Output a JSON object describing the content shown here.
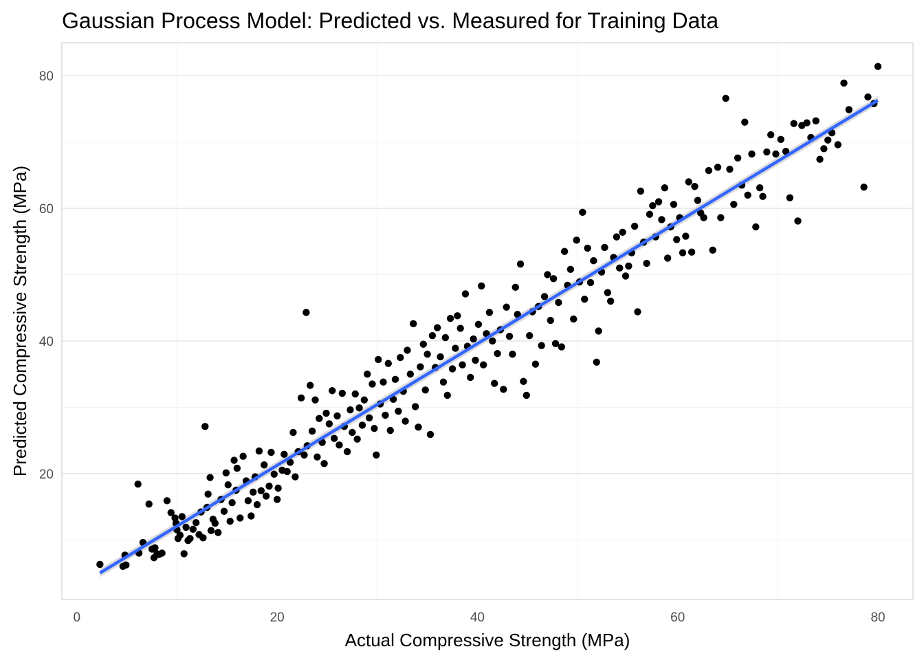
{
  "chart_data": {
    "type": "scatter",
    "title": "Gaussian Process Model: Predicted vs. Measured for Training Data",
    "xlabel": "Actual Compressive Strength (MPa)",
    "ylabel": "Predicted Compressive Strength (MPa)",
    "xlim": [
      -1.5,
      83.5
    ],
    "ylim": [
      1.0,
      85.0
    ],
    "x_ticks": [
      0,
      20,
      40,
      60,
      80
    ],
    "y_ticks": [
      20,
      40,
      60,
      80
    ],
    "grid": true,
    "point_color": "#000000",
    "fit_line": {
      "x": [
        2.3,
        80.0
      ],
      "y": [
        5.0,
        76.3
      ],
      "color": "#3366ff",
      "band_color": "#cccccc"
    },
    "points": [
      [
        2.3,
        6.3
      ],
      [
        4.6,
        6.0
      ],
      [
        4.8,
        7.7
      ],
      [
        4.9,
        6.2
      ],
      [
        6.1,
        18.4
      ],
      [
        6.2,
        8.0
      ],
      [
        6.6,
        9.6
      ],
      [
        7.2,
        15.4
      ],
      [
        7.5,
        8.6
      ],
      [
        7.7,
        7.3
      ],
      [
        7.8,
        8.8
      ],
      [
        8.0,
        7.9
      ],
      [
        8.2,
        7.8
      ],
      [
        8.5,
        8.0
      ],
      [
        9.0,
        15.9
      ],
      [
        9.4,
        14.1
      ],
      [
        9.8,
        13.3
      ],
      [
        9.9,
        12.5
      ],
      [
        10.0,
        11.5
      ],
      [
        10.1,
        10.2
      ],
      [
        10.3,
        10.7
      ],
      [
        10.5,
        13.5
      ],
      [
        10.7,
        7.9
      ],
      [
        10.9,
        11.9
      ],
      [
        11.1,
        9.9
      ],
      [
        11.3,
        10.2
      ],
      [
        11.6,
        11.6
      ],
      [
        11.9,
        12.6
      ],
      [
        12.2,
        10.8
      ],
      [
        12.4,
        14.2
      ],
      [
        12.6,
        10.3
      ],
      [
        12.8,
        27.1
      ],
      [
        13.0,
        14.9
      ],
      [
        13.1,
        16.9
      ],
      [
        13.3,
        19.4
      ],
      [
        13.4,
        11.4
      ],
      [
        13.6,
        13.1
      ],
      [
        13.8,
        12.5
      ],
      [
        14.1,
        11.1
      ],
      [
        14.4,
        16.1
      ],
      [
        14.7,
        14.3
      ],
      [
        14.9,
        20.1
      ],
      [
        15.1,
        18.3
      ],
      [
        15.3,
        12.8
      ],
      [
        15.5,
        15.6
      ],
      [
        15.7,
        22.0
      ],
      [
        15.9,
        17.5
      ],
      [
        16.0,
        20.8
      ],
      [
        16.3,
        13.3
      ],
      [
        16.6,
        22.6
      ],
      [
        16.9,
        18.9
      ],
      [
        17.1,
        15.9
      ],
      [
        17.4,
        13.6
      ],
      [
        17.6,
        17.2
      ],
      [
        17.8,
        19.5
      ],
      [
        18.0,
        15.3
      ],
      [
        18.2,
        23.4
      ],
      [
        18.4,
        17.4
      ],
      [
        18.7,
        21.3
      ],
      [
        18.9,
        16.6
      ],
      [
        19.2,
        18.1
      ],
      [
        19.4,
        23.2
      ],
      [
        19.7,
        19.9
      ],
      [
        20.0,
        16.1
      ],
      [
        20.1,
        17.8
      ],
      [
        20.5,
        20.5
      ],
      [
        20.7,
        22.9
      ],
      [
        21.0,
        20.3
      ],
      [
        21.3,
        21.7
      ],
      [
        21.6,
        26.2
      ],
      [
        21.8,
        19.5
      ],
      [
        22.1,
        23.3
      ],
      [
        22.4,
        31.4
      ],
      [
        22.7,
        22.8
      ],
      [
        22.9,
        44.3
      ],
      [
        23.0,
        24.2
      ],
      [
        23.3,
        33.3
      ],
      [
        23.5,
        26.4
      ],
      [
        23.8,
        31.1
      ],
      [
        24.0,
        22.5
      ],
      [
        24.2,
        28.3
      ],
      [
        24.5,
        24.7
      ],
      [
        24.7,
        21.5
      ],
      [
        24.9,
        29.1
      ],
      [
        25.2,
        27.5
      ],
      [
        25.5,
        32.5
      ],
      [
        25.7,
        25.3
      ],
      [
        26.0,
        28.7
      ],
      [
        26.2,
        24.3
      ],
      [
        26.5,
        32.1
      ],
      [
        26.7,
        27.1
      ],
      [
        27.0,
        23.3
      ],
      [
        27.3,
        29.6
      ],
      [
        27.5,
        26.2
      ],
      [
        27.8,
        32.0
      ],
      [
        28.0,
        25.2
      ],
      [
        28.2,
        29.9
      ],
      [
        28.5,
        27.3
      ],
      [
        28.7,
        31.1
      ],
      [
        29.0,
        35.0
      ],
      [
        29.2,
        28.4
      ],
      [
        29.5,
        33.5
      ],
      [
        29.7,
        26.8
      ],
      [
        29.9,
        22.8
      ],
      [
        30.1,
        37.2
      ],
      [
        30.3,
        30.5
      ],
      [
        30.6,
        33.8
      ],
      [
        30.8,
        28.8
      ],
      [
        31.1,
        36.6
      ],
      [
        31.3,
        26.5
      ],
      [
        31.6,
        31.2
      ],
      [
        31.8,
        34.2
      ],
      [
        32.1,
        29.4
      ],
      [
        32.3,
        37.5
      ],
      [
        32.6,
        32.4
      ],
      [
        32.8,
        27.9
      ],
      [
        33.0,
        38.6
      ],
      [
        33.3,
        35.0
      ],
      [
        33.6,
        42.6
      ],
      [
        33.8,
        30.1
      ],
      [
        34.1,
        27.0
      ],
      [
        34.3,
        36.1
      ],
      [
        34.6,
        39.5
      ],
      [
        34.8,
        32.6
      ],
      [
        35.0,
        38.0
      ],
      [
        35.3,
        25.9
      ],
      [
        35.5,
        40.8
      ],
      [
        35.8,
        36.0
      ],
      [
        36.0,
        42.0
      ],
      [
        36.3,
        37.6
      ],
      [
        36.6,
        33.8
      ],
      [
        36.8,
        40.5
      ],
      [
        37.0,
        31.8
      ],
      [
        37.3,
        43.4
      ],
      [
        37.5,
        35.8
      ],
      [
        37.8,
        38.9
      ],
      [
        38.0,
        43.8
      ],
      [
        38.3,
        41.9
      ],
      [
        38.5,
        36.4
      ],
      [
        38.8,
        47.1
      ],
      [
        39.0,
        39.2
      ],
      [
        39.3,
        34.5
      ],
      [
        39.6,
        40.3
      ],
      [
        39.8,
        37.1
      ],
      [
        40.1,
        42.5
      ],
      [
        40.4,
        48.3
      ],
      [
        40.6,
        36.4
      ],
      [
        40.9,
        41.1
      ],
      [
        41.2,
        44.3
      ],
      [
        41.5,
        40.0
      ],
      [
        41.7,
        33.6
      ],
      [
        42.0,
        38.1
      ],
      [
        42.3,
        41.7
      ],
      [
        42.6,
        32.7
      ],
      [
        42.9,
        45.1
      ],
      [
        43.2,
        40.7
      ],
      [
        43.5,
        38.0
      ],
      [
        43.8,
        48.1
      ],
      [
        44.0,
        44.0
      ],
      [
        44.3,
        51.6
      ],
      [
        44.6,
        33.9
      ],
      [
        44.9,
        31.8
      ],
      [
        45.2,
        40.8
      ],
      [
        45.5,
        44.4
      ],
      [
        45.8,
        36.5
      ],
      [
        46.1,
        45.2
      ],
      [
        46.4,
        39.3
      ],
      [
        46.7,
        46.7
      ],
      [
        47.0,
        50.0
      ],
      [
        47.3,
        43.1
      ],
      [
        47.6,
        49.4
      ],
      [
        47.8,
        39.6
      ],
      [
        48.1,
        45.8
      ],
      [
        48.4,
        39.1
      ],
      [
        48.7,
        53.5
      ],
      [
        49.0,
        48.4
      ],
      [
        49.3,
        50.8
      ],
      [
        49.6,
        43.3
      ],
      [
        49.9,
        55.2
      ],
      [
        50.2,
        48.9
      ],
      [
        50.5,
        59.4
      ],
      [
        50.7,
        46.3
      ],
      [
        51.0,
        54.0
      ],
      [
        51.3,
        48.8
      ],
      [
        51.6,
        52.1
      ],
      [
        51.9,
        36.8
      ],
      [
        52.1,
        41.5
      ],
      [
        52.4,
        50.4
      ],
      [
        52.7,
        54.1
      ],
      [
        53.0,
        47.3
      ],
      [
        53.3,
        46.0
      ],
      [
        53.6,
        52.6
      ],
      [
        53.9,
        55.7
      ],
      [
        54.2,
        51.0
      ],
      [
        54.5,
        56.4
      ],
      [
        54.8,
        49.8
      ],
      [
        55.1,
        51.3
      ],
      [
        55.4,
        53.3
      ],
      [
        55.7,
        57.3
      ],
      [
        56.0,
        44.4
      ],
      [
        56.3,
        62.6
      ],
      [
        56.6,
        54.9
      ],
      [
        56.9,
        51.7
      ],
      [
        57.2,
        59.1
      ],
      [
        57.5,
        60.4
      ],
      [
        57.8,
        55.7
      ],
      [
        58.1,
        61.0
      ],
      [
        58.4,
        58.3
      ],
      [
        58.7,
        63.1
      ],
      [
        59.0,
        52.5
      ],
      [
        59.3,
        57.2
      ],
      [
        59.6,
        60.6
      ],
      [
        59.9,
        55.3
      ],
      [
        60.2,
        58.6
      ],
      [
        60.5,
        53.3
      ],
      [
        60.8,
        55.8
      ],
      [
        61.1,
        64.0
      ],
      [
        61.4,
        53.4
      ],
      [
        61.7,
        63.3
      ],
      [
        62.0,
        61.2
      ],
      [
        62.3,
        59.3
      ],
      [
        62.6,
        58.6
      ],
      [
        63.1,
        65.7
      ],
      [
        63.5,
        53.7
      ],
      [
        64.0,
        66.2
      ],
      [
        64.3,
        58.6
      ],
      [
        64.8,
        76.6
      ],
      [
        65.2,
        65.9
      ],
      [
        65.6,
        60.6
      ],
      [
        66.0,
        67.6
      ],
      [
        66.4,
        63.5
      ],
      [
        66.7,
        73.0
      ],
      [
        67.0,
        62.0
      ],
      [
        67.4,
        68.2
      ],
      [
        67.8,
        57.2
      ],
      [
        68.2,
        63.1
      ],
      [
        68.5,
        61.8
      ],
      [
        68.9,
        68.5
      ],
      [
        69.3,
        71.1
      ],
      [
        69.8,
        68.2
      ],
      [
        70.3,
        70.4
      ],
      [
        70.8,
        68.6
      ],
      [
        71.2,
        61.6
      ],
      [
        71.6,
        72.8
      ],
      [
        72.0,
        58.1
      ],
      [
        72.4,
        72.5
      ],
      [
        72.9,
        72.9
      ],
      [
        73.3,
        70.7
      ],
      [
        73.8,
        73.2
      ],
      [
        74.2,
        67.4
      ],
      [
        74.6,
        69.0
      ],
      [
        75.0,
        70.3
      ],
      [
        75.4,
        71.4
      ],
      [
        76.0,
        69.6
      ],
      [
        76.6,
        78.9
      ],
      [
        77.1,
        74.9
      ],
      [
        78.6,
        63.2
      ],
      [
        79.0,
        76.8
      ],
      [
        79.6,
        75.8
      ],
      [
        80.0,
        81.4
      ]
    ]
  }
}
